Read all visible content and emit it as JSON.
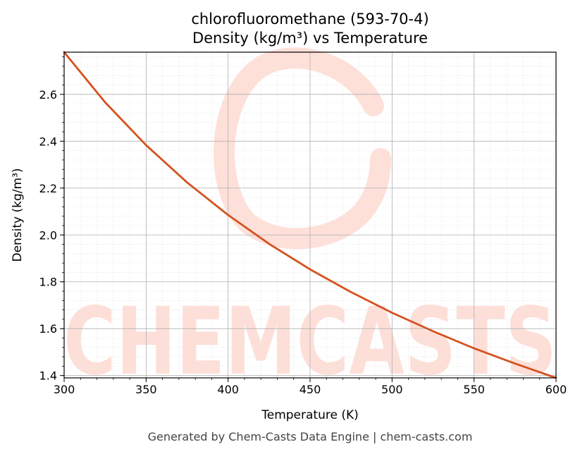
{
  "chart_data": {
    "type": "line",
    "title_line1": "chlorofluoromethane (593-70-4)",
    "title_line2": "Density (kg/m³) vs Temperature",
    "xlabel": "Temperature (K)",
    "ylabel": "Density (kg/m³)",
    "xlim": [
      300,
      600
    ],
    "ylim": [
      1.39,
      2.78
    ],
    "xticks": [
      "300",
      "350",
      "400",
      "450",
      "500",
      "550",
      "600"
    ],
    "yticks": [
      "1.4",
      "1.6",
      "1.8",
      "2.0",
      "2.2",
      "2.4",
      "2.6"
    ],
    "grid": true,
    "series": [
      {
        "color": "#d4521f",
        "x": [
          300,
          325,
          350,
          375,
          400,
          425,
          450,
          475,
          500,
          525,
          550,
          575,
          600
        ],
        "y": [
          2.78,
          2.566,
          2.383,
          2.224,
          2.085,
          1.962,
          1.853,
          1.756,
          1.668,
          1.589,
          1.516,
          1.451,
          1.39
        ]
      }
    ]
  },
  "watermark": "CHEMCASTS",
  "footer": "Generated by Chem-Casts Data Engine | chem-casts.com"
}
